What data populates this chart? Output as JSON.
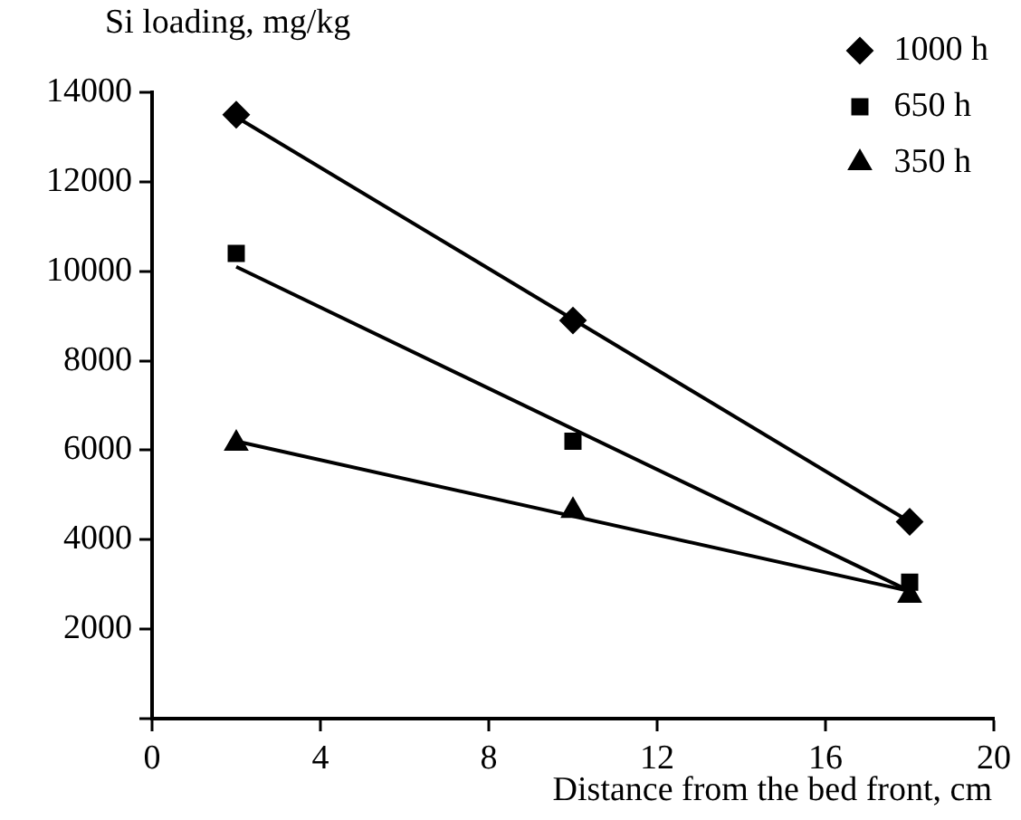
{
  "chart_data": {
    "type": "scatter",
    "xlabel": "Distance from the bed front, cm",
    "ylabel": "Si loading, mg/kg",
    "xlim": [
      0,
      20
    ],
    "xticks": [
      0,
      4,
      8,
      12,
      16,
      20
    ],
    "ylim": [
      0,
      14000
    ],
    "yticks": [
      {
        "value": 0,
        "label": null
      },
      2000,
      4000,
      6000,
      8000,
      10000,
      12000,
      14000
    ],
    "legend": "top right",
    "grid": false,
    "series": [
      {
        "name": "1000 h",
        "type": "scatter",
        "marker": "diamond",
        "color": "#000000",
        "x": [
          2,
          10,
          18
        ],
        "values": [
          13500,
          8900,
          4400
        ]
      },
      {
        "name": "650 h",
        "type": "scatter",
        "marker": "square",
        "color": "#000000",
        "x": [
          2,
          10,
          18
        ],
        "values": [
          10400,
          6200,
          3050
        ]
      },
      {
        "name": "350 h",
        "type": "scatter",
        "marker": "triangle",
        "color": "#000000",
        "x": [
          2,
          10,
          18
        ],
        "values": [
          6150,
          4650,
          2750
        ]
      },
      {
        "type": "line",
        "marker": "none",
        "color": "#000000",
        "x": [
          2,
          18
        ],
        "values": [
          13450,
          4400
        ]
      },
      {
        "type": "line",
        "marker": "none",
        "color": "#000000",
        "x": [
          2,
          18
        ],
        "values": [
          10100,
          2850
        ]
      },
      {
        "type": "line",
        "marker": "none",
        "color": "#000000",
        "x": [
          2,
          18
        ],
        "values": [
          6200,
          2850
        ]
      }
    ]
  }
}
